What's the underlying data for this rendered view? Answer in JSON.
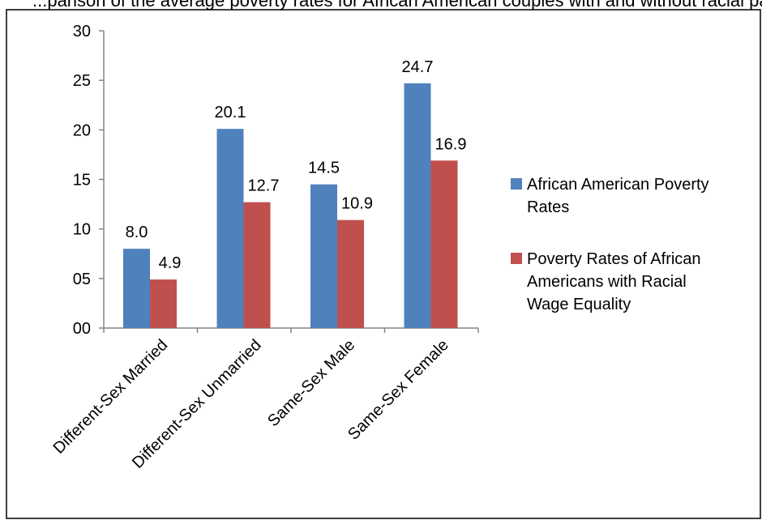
{
  "header_text": "...parison of the average poverty rates for African American couples with and without racial pay equity ...",
  "chart_data": {
    "type": "bar",
    "categories": [
      "Different-Sex Married",
      "Different-Sex Unmarried",
      "Same-Sex Male",
      "Same-Sex Female"
    ],
    "series": [
      {
        "name_lines": [
          "African American Poverty",
          "Rates"
        ],
        "values": [
          8.0,
          20.1,
          14.5,
          24.7
        ],
        "labels": [
          "8.0",
          "20.1",
          "14.5",
          "24.7"
        ],
        "color": "#4F81BD"
      },
      {
        "name_lines": [
          "Poverty Rates of African",
          "Americans with Racial",
          "Wage Equality"
        ],
        "values": [
          4.9,
          12.7,
          10.9,
          16.9
        ],
        "labels": [
          "4.9",
          "12.7",
          "10.9",
          "16.9"
        ],
        "color": "#C0504D"
      }
    ],
    "ylim": [
      0,
      30
    ],
    "yticks": [
      "00",
      "05",
      "10",
      "15",
      "20",
      "25",
      "30"
    ],
    "legend_position": "right",
    "grid": false
  }
}
